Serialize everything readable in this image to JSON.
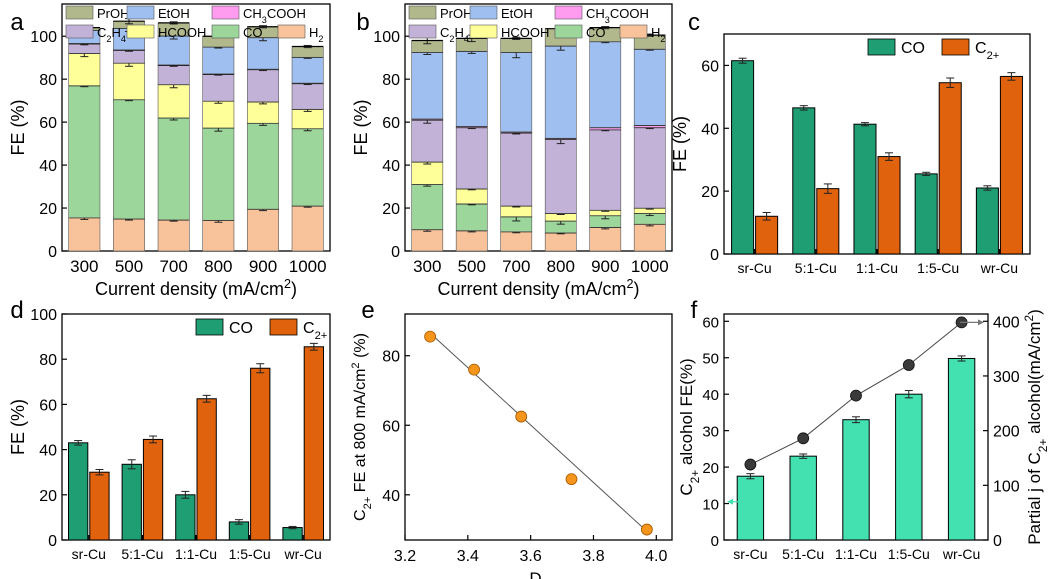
{
  "panel_labels": [
    "a",
    "b",
    "c",
    "d",
    "e",
    "f"
  ],
  "colors": {
    "H2": "#f8c39a",
    "CO": "#9cd69a",
    "HCOOH": "#ffff99",
    "C2H4": "#c3b2d8",
    "CH3COOH": "#ff9cf0",
    "EtOH": "#9fbff0",
    "PrOH": "#b0b88c",
    "bar_CO": "#1e9e72",
    "bar_C2": "#e0620d",
    "marker_e": "#f5951c",
    "bar_f": "#43e0b0",
    "line_f": "#444444"
  },
  "chart_data": [
    {
      "panel": "a",
      "type": "bar",
      "stacked": true,
      "categories": [
        "300",
        "500",
        "700",
        "800",
        "900",
        "1000"
      ],
      "xlabel": "Current density (mA/cm²)",
      "ylabel": "FE (%)",
      "ylim": [
        0,
        115
      ],
      "yticks": [
        0,
        20,
        40,
        60,
        80,
        100
      ],
      "legend": [
        "PrOH",
        "EtOH",
        "CH₃COOH",
        "C₂H₄",
        "HCOOH",
        "CO",
        "H₂"
      ],
      "series": [
        {
          "name": "H₂",
          "key": "H2",
          "values": [
            15.5,
            15.0,
            14.5,
            14.3,
            19.5,
            21.0
          ],
          "err": [
            0.8,
            0.6,
            0.6,
            0.9,
            0.7,
            0.6
          ]
        },
        {
          "name": "CO",
          "key": "CO",
          "values": [
            61.5,
            55.5,
            47.5,
            43.0,
            40.0,
            36.0
          ],
          "err": [
            0.5,
            0.5,
            1.0,
            1.5,
            1.0,
            1.0
          ]
        },
        {
          "name": "HCOOH",
          "key": "HCOOH",
          "values": [
            15.0,
            17.0,
            15.5,
            12.5,
            10.0,
            9.0
          ],
          "err": [
            1.5,
            1.5,
            1.5,
            1.0,
            1.0,
            1.0
          ]
        },
        {
          "name": "C₂H₄",
          "key": "C2H4",
          "values": [
            4.5,
            6.0,
            9.0,
            12.5,
            15.0,
            12.0
          ],
          "err": [
            0.5,
            0.5,
            0.5,
            0.4,
            0.5,
            0.5
          ]
        },
        {
          "name": "CH₃COOH",
          "key": "CH3COOH",
          "values": [
            0.2,
            0.2,
            0.2,
            0.2,
            0.2,
            0.2
          ],
          "err": [
            0,
            0,
            0,
            0,
            0,
            0
          ]
        },
        {
          "name": "EtOH",
          "key": "EtOH",
          "values": [
            6.0,
            10.0,
            13.5,
            12.5,
            14.7,
            12.0
          ],
          "err": [
            1.5,
            1.5,
            1.5,
            0.5,
            1.5,
            0.5
          ]
        },
        {
          "name": "PrOH",
          "key": "PrOH",
          "values": [
            1.3,
            3.3,
            6.0,
            5.0,
            5.0,
            5.0
          ],
          "err": [
            1.0,
            1.2,
            0.5,
            0.5,
            0.5,
            0.5
          ]
        }
      ]
    },
    {
      "panel": "b",
      "type": "bar",
      "stacked": true,
      "categories": [
        "300",
        "500",
        "700",
        "800",
        "900",
        "1000"
      ],
      "xlabel": "Current density (mA/cm²)",
      "ylabel": "FE (%)",
      "ylim": [
        0,
        115
      ],
      "yticks": [
        0,
        20,
        40,
        60,
        80,
        100
      ],
      "legend": [
        "PrOH",
        "EtOH",
        "CH₃COOH",
        "C₂H₄",
        "HCOOH",
        "CO",
        "H₂"
      ],
      "series": [
        {
          "name": "H₂",
          "key": "H2",
          "values": [
            10.0,
            9.5,
            9.0,
            8.5,
            11.0,
            12.5
          ],
          "err": [
            0.8,
            0.6,
            0.5,
            0.5,
            0.7,
            0.8
          ]
        },
        {
          "name": "CO",
          "key": "CO",
          "values": [
            21.0,
            12.5,
            7.0,
            5.5,
            5.5,
            5.0
          ],
          "err": [
            0.8,
            0.5,
            2.0,
            1.5,
            1.5,
            1.0
          ]
        },
        {
          "name": "HCOOH",
          "key": "HCOOH",
          "values": [
            10.5,
            7.0,
            5.0,
            3.5,
            2.5,
            2.5
          ],
          "err": [
            1.0,
            0.5,
            0.5,
            0.5,
            0.5,
            0.5
          ]
        },
        {
          "name": "C₂H₄",
          "key": "C2H4",
          "values": [
            19.5,
            28.5,
            34.0,
            34.5,
            37.5,
            37.5
          ],
          "err": [
            1.5,
            0.5,
            0.5,
            2.0,
            0.5,
            0.5
          ]
        },
        {
          "name": "CH₃COOH",
          "key": "CH3COOH",
          "values": [
            0.5,
            0.5,
            0.5,
            0.5,
            1.0,
            1.0
          ],
          "err": [
            0,
            0,
            0,
            0,
            0,
            0
          ]
        },
        {
          "name": "EtOH",
          "key": "EtOH",
          "values": [
            31.0,
            35.0,
            37.0,
            43.0,
            40.0,
            35.5
          ],
          "err": [
            1.0,
            1.0,
            2.5,
            2.0,
            0.5,
            0.5
          ]
        },
        {
          "name": "PrOH",
          "key": "PrOH",
          "values": [
            5.5,
            6.0,
            6.5,
            8.0,
            6.5,
            6.5
          ],
          "err": [
            1.5,
            1.5,
            0.5,
            0.5,
            0.5,
            0.5
          ]
        }
      ]
    },
    {
      "panel": "c",
      "type": "bar",
      "grouped": true,
      "categories": [
        "sr-Cu",
        "5:1-Cu",
        "1:1-Cu",
        "1:5-Cu",
        "wr-Cu"
      ],
      "ylabel": "FE (%)",
      "ylim": [
        0,
        70
      ],
      "yticks": [
        0,
        20,
        40,
        60
      ],
      "legend_position": "top-right",
      "series": [
        {
          "name": "CO",
          "key": "bar_CO",
          "values": [
            61.5,
            46.5,
            41.3,
            25.5,
            21.0
          ],
          "err": [
            0.8,
            0.7,
            0.5,
            0.5,
            0.7
          ]
        },
        {
          "name": "C₂₊",
          "key": "bar_C2",
          "values": [
            12.0,
            20.8,
            31.0,
            54.5,
            56.5
          ],
          "err": [
            1.2,
            1.5,
            1.2,
            1.5,
            1.2
          ]
        }
      ]
    },
    {
      "panel": "d",
      "type": "bar",
      "grouped": true,
      "categories": [
        "sr-Cu",
        "5:1-Cu",
        "1:1-Cu",
        "1:5-Cu",
        "wr-Cu"
      ],
      "ylabel": "FE (%)",
      "ylim": [
        0,
        100
      ],
      "yticks": [
        0,
        20,
        40,
        60,
        80,
        100
      ],
      "legend_position": "top-right",
      "series": [
        {
          "name": "CO",
          "key": "bar_CO",
          "values": [
            43.0,
            33.5,
            20.0,
            8.0,
            5.5
          ],
          "err": [
            1.0,
            2.0,
            1.5,
            1.0,
            0.5
          ]
        },
        {
          "name": "C₂₊",
          "key": "bar_C2",
          "values": [
            30.0,
            44.5,
            62.5,
            76.0,
            85.5
          ],
          "err": [
            1.2,
            1.5,
            1.5,
            2.0,
            1.5
          ]
        }
      ]
    },
    {
      "panel": "e",
      "type": "scatter",
      "xlabel": "Ds",
      "ylabel": "C₂₊ FE at 800 mA/cm² (%)",
      "xlim": [
        3.2,
        4.05
      ],
      "xticks": [
        3.2,
        3.4,
        3.6,
        3.8,
        4.0
      ],
      "ylim": [
        27,
        92
      ],
      "yticks": [
        40,
        60,
        80
      ],
      "points": [
        {
          "x": 3.28,
          "y": 85.5,
          "err": 1.0
        },
        {
          "x": 3.42,
          "y": 76.0,
          "err": 1.0
        },
        {
          "x": 3.57,
          "y": 62.5,
          "err": 1.0
        },
        {
          "x": 3.73,
          "y": 44.5,
          "err": 1.0
        },
        {
          "x": 3.97,
          "y": 30.0,
          "err": 1.0
        }
      ],
      "fit": [
        [
          3.28,
          86.5
        ],
        [
          3.97,
          29.5
        ]
      ]
    },
    {
      "panel": "f",
      "type": "bar+line",
      "categories": [
        "sr-Cu",
        "5:1-Cu",
        "1:1-Cu",
        "1:5-Cu",
        "wr-Cu"
      ],
      "ylabel": "C₂₊ alcohol FE(%)",
      "ylabel_right": "Partial j of C₂₊ alcohol(mA/cm²)",
      "ylim": [
        0,
        62
      ],
      "yticks": [
        0,
        10,
        20,
        30,
        40,
        50,
        60
      ],
      "ylim_right": [
        0,
        413.3
      ],
      "yticks_right": [
        0,
        100,
        200,
        300,
        400
      ],
      "bars": {
        "values": [
          17.5,
          23.0,
          33.0,
          40.0,
          49.8
        ],
        "err": [
          0.7,
          0.6,
          0.8,
          1.0,
          0.7
        ]
      },
      "line": {
        "values": [
          138,
          186,
          264,
          320,
          398
        ]
      }
    }
  ]
}
